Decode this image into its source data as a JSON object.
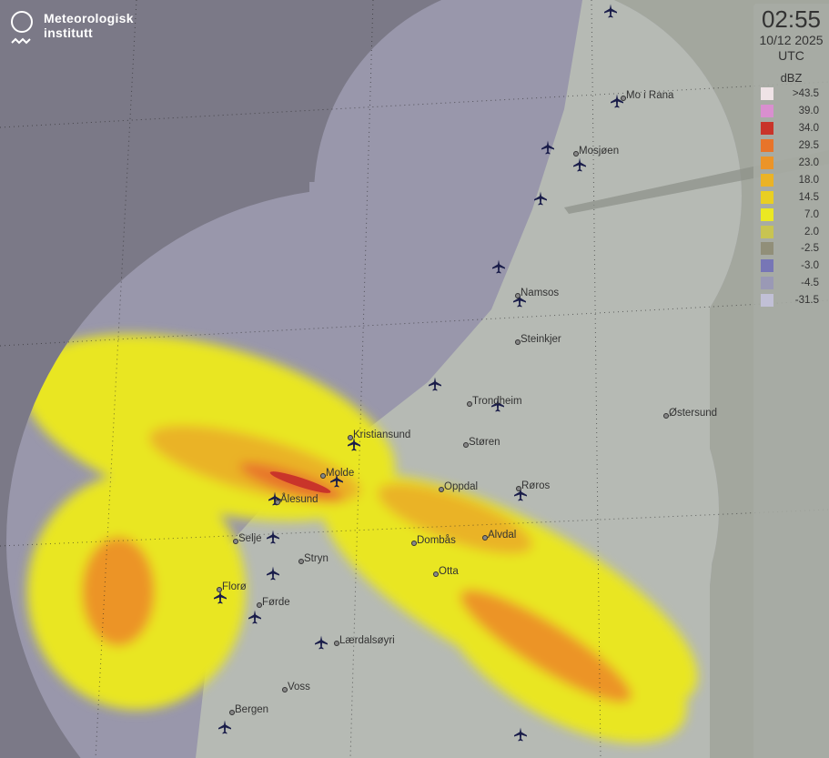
{
  "logo": {
    "name_line1": "Meteorologisk",
    "name_line2": "institutt"
  },
  "legend": {
    "time": "02:55",
    "date": "10/12 2025",
    "timezone": "UTC",
    "unit": "dBZ",
    "levels": [
      {
        "label": ">43.5",
        "color": "#efe3e6"
      },
      {
        "label": "39.0",
        "color": "#d98fcf"
      },
      {
        "label": "34.0",
        "color": "#c9342a"
      },
      {
        "label": "29.5",
        "color": "#e8742a"
      },
      {
        "label": "23.0",
        "color": "#ec9428"
      },
      {
        "label": "18.0",
        "color": "#eab326"
      },
      {
        "label": "14.5",
        "color": "#e9cf22"
      },
      {
        "label": "7.0",
        "color": "#ebe822"
      },
      {
        "label": "2.0",
        "color": "#c8c452"
      },
      {
        "label": "-2.5",
        "color": "#918f79"
      },
      {
        "label": "-3.0",
        "color": "#7776b6"
      },
      {
        "label": "-4.5",
        "color": "#9a99b5"
      },
      {
        "label": "-31.5",
        "color": "#c1c0d6"
      }
    ]
  },
  "cities": [
    "Mo i Rana",
    "Mosjøen",
    "Namsos",
    "Steinkjer",
    "Trondheim",
    "Østersund",
    "Kristiansund",
    "Støren",
    "Molde",
    "Ålesund",
    "Oppdal",
    "Røros",
    "Selje",
    "Dombås",
    "Alvdal",
    "Stryn",
    "Otta",
    "Florø",
    "Førde",
    "Lærdalsøyri",
    "Voss",
    "Bergen"
  ],
  "icons": {
    "airport": "airplane-icon"
  }
}
